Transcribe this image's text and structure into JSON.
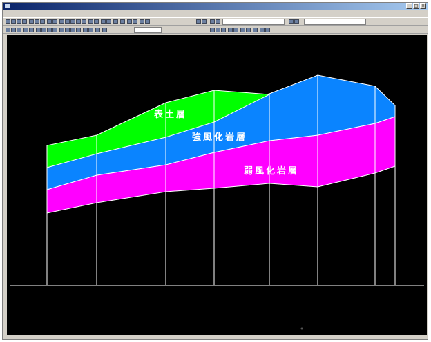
{
  "window": {
    "title": "",
    "buttons": [
      "_",
      "□",
      "×"
    ]
  },
  "menu": {
    "items": [
      "",
      "",
      "",
      "",
      "",
      "",
      "",
      "",
      "",
      "",
      "",
      ""
    ]
  },
  "toolbar": {
    "dropdown1": "",
    "dropdown2": "",
    "dropdown3": ""
  },
  "section": {
    "layers": [
      {
        "name": "表土層",
        "color": "#00ff00"
      },
      {
        "name": "強風化岩層",
        "color": "#0a84ff"
      },
      {
        "name": "弱風化岩層",
        "color": "#ff00ff"
      }
    ],
    "background": "#000000",
    "line_color": "#ffffff"
  },
  "status": {
    "text": ""
  }
}
